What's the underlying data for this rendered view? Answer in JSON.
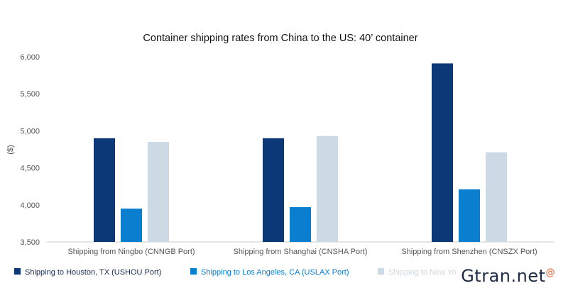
{
  "chart_data": {
    "type": "bar",
    "title": "Container shipping rates from China to the US: 40’ container",
    "ylabel": "($)",
    "ylim": [
      3500,
      6000
    ],
    "yticks": [
      "3,500",
      "4,000",
      "4,500",
      "5,000",
      "5,500",
      "6,000"
    ],
    "ytick_values": [
      3500,
      4000,
      4500,
      5000,
      5500,
      6000
    ],
    "categories": [
      "Shipping from Ningbo (CNNGB Port)",
      "Shipping from Shanghai (CNSHA Port)",
      "Shipping from Shenzhen (CNSZX Port)"
    ],
    "series": [
      {
        "name": "Shipping to Houston, TX (USHOU Port)",
        "color": "#0d3878",
        "values": [
          4900,
          4900,
          5910
        ]
      },
      {
        "name": "Shipping to Los Angeles, CA (USLAX Port)",
        "color": "#0a7fcf",
        "values": [
          3950,
          3970,
          4210
        ]
      },
      {
        "name": "Shipping to New York, NY (USNYC Port)",
        "color": "#ccdae6",
        "values": [
          4850,
          4930,
          4710
        ]
      }
    ],
    "grid": false,
    "legend_position": "bottom"
  },
  "watermark": {
    "text": "Gtran.net",
    "mark": "@"
  }
}
